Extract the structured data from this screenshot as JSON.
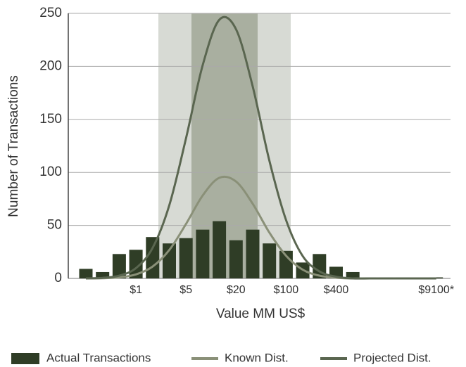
{
  "chart_data": {
    "type": "bar",
    "y_label": "Number of Transactions",
    "x_label": "Value MM US$",
    "categories": [
      null,
      null,
      null,
      "$1",
      null,
      null,
      "$5",
      null,
      null,
      "$20",
      null,
      null,
      "$100",
      null,
      null,
      "$400",
      null,
      null,
      null,
      null,
      null,
      "$9100*"
    ],
    "series": [
      {
        "name": "Actual Transactions",
        "type": "bar",
        "color": "#2f3d26",
        "values": [
          9,
          6,
          23,
          27,
          39,
          33,
          38,
          46,
          54,
          36,
          46,
          33,
          26,
          15,
          23,
          11,
          6,
          1,
          1,
          1,
          0.5,
          1
        ]
      },
      {
        "name": "Known Dist.",
        "type": "line",
        "color": "#8a9078",
        "values": [
          0,
          0.2,
          1,
          3.8,
          11.2,
          26.8,
          51.3,
          78.2,
          94.9,
          91.4,
          70.4,
          43.2,
          21.4,
          8.2,
          2.6,
          0.6,
          0,
          0,
          0,
          0,
          0,
          0
        ]
      },
      {
        "name": "Projected Dist.",
        "type": "line",
        "color": "#5a6650",
        "values": [
          0,
          0.5,
          2.6,
          9.7,
          28.8,
          69,
          132,
          201,
          244,
          235,
          181,
          111,
          55,
          21,
          6.6,
          1.6,
          0,
          0,
          0,
          0,
          0,
          0
        ]
      }
    ],
    "ylim": [
      0,
      250
    ],
    "yticks": [
      0,
      50,
      100,
      150,
      200,
      250
    ],
    "grid": true
  }
}
